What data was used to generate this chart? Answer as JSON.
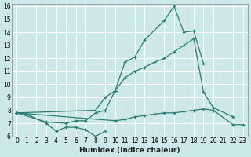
{
  "xlabel": "Humidex (Indice chaleur)",
  "xlim": [
    -0.5,
    23.5
  ],
  "ylim": [
    6,
    16.2
  ],
  "yticks": [
    6,
    7,
    8,
    9,
    10,
    11,
    12,
    13,
    14,
    15,
    16
  ],
  "xticks": [
    0,
    1,
    2,
    3,
    4,
    5,
    6,
    7,
    8,
    9,
    10,
    11,
    12,
    13,
    14,
    15,
    16,
    17,
    18,
    19,
    20,
    21,
    22,
    23
  ],
  "background_color": "#cde8e8",
  "grid_color": "#ffffff",
  "line_color": "#2a7d74",
  "lines": [
    {
      "x": [
        0,
        1,
        3,
        4,
        5,
        6,
        7,
        8,
        9
      ],
      "y": [
        7.8,
        7.7,
        7.0,
        6.4,
        6.7,
        6.7,
        6.5,
        6.0,
        6.4
      ]
    },
    {
      "x": [
        0,
        3,
        5,
        6,
        7,
        8,
        9,
        10,
        11,
        12,
        13,
        15,
        16,
        17,
        18,
        19
      ],
      "y": [
        7.8,
        7.1,
        7.0,
        7.2,
        7.2,
        7.8,
        8.0,
        9.5,
        11.7,
        12.1,
        13.4,
        14.9,
        16.0,
        14.0,
        14.1,
        11.6
      ]
    },
    {
      "x": [
        0,
        8,
        9,
        10,
        11,
        12,
        13,
        14,
        15,
        16,
        17,
        18,
        19,
        20,
        22
      ],
      "y": [
        7.8,
        8.0,
        9.0,
        9.5,
        10.5,
        11.0,
        11.3,
        11.7,
        12.0,
        12.5,
        13.0,
        13.5,
        9.4,
        8.2,
        7.5
      ]
    },
    {
      "x": [
        0,
        10,
        11,
        12,
        13,
        14,
        15,
        16,
        17,
        18,
        19,
        20,
        22,
        23
      ],
      "y": [
        7.8,
        7.2,
        7.3,
        7.5,
        7.6,
        7.7,
        7.8,
        7.8,
        7.9,
        8.0,
        8.1,
        8.0,
        6.9,
        6.9
      ]
    }
  ]
}
